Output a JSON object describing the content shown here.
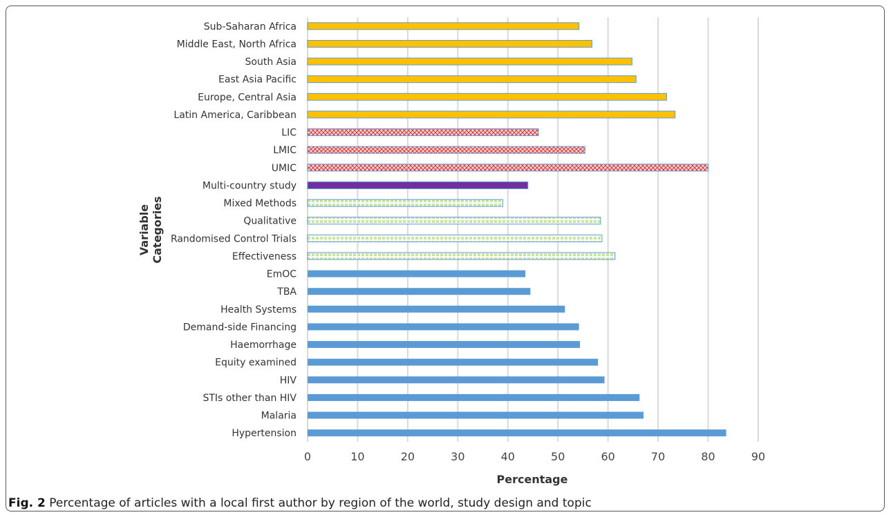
{
  "figure": {
    "label": "Fig. 2",
    "caption": "Percentage of articles with a local first author by region of the world, study design and topic"
  },
  "colors": {
    "region": "#FFC000",
    "income": "#FF9999",
    "income_cross": "#C00000",
    "multi": "#7030A0",
    "design": "#E2EFB8",
    "design_grid": "#5B9BD5",
    "topic": "#5B9BD5",
    "gridline": "#D9D9D9",
    "outline": "#5B9BD5"
  },
  "chart_data": {
    "type": "bar",
    "orientation": "horizontal",
    "xlabel": "Percentage",
    "ylabel": "Variable Categories",
    "xlim": [
      0,
      90
    ],
    "xticks": [
      0,
      10,
      20,
      30,
      40,
      50,
      60,
      70,
      80,
      90
    ],
    "grid": true,
    "categories": [
      "Sub-Saharan Africa",
      "Middle East, North Africa",
      "South Asia",
      "East Asia Pacific",
      "Europe, Central Asia",
      "Latin America, Caribbean",
      "LIC",
      "LMIC",
      "UMIC",
      "Multi-country study",
      "Mixed Methods",
      "Qualitative",
      "Randomised Control Trials",
      "Effectiveness",
      "EmOC",
      "TBA",
      "Health Systems",
      "Demand-side Financing",
      "Haemorrhage",
      "Equity examined",
      "HIV",
      "STIs other than HIV",
      "Malaria",
      "Hypertension"
    ],
    "values": [
      54.2,
      56.8,
      64.8,
      65.6,
      71.7,
      73.4,
      46.1,
      55.4,
      80.0,
      44.0,
      39.0,
      58.5,
      58.8,
      61.4,
      43.5,
      44.5,
      51.4,
      54.2,
      54.4,
      58.0,
      59.3,
      66.3,
      67.1,
      83.6
    ],
    "groups": [
      "region",
      "region",
      "region",
      "region",
      "region",
      "region",
      "income",
      "income",
      "income",
      "multi",
      "design",
      "design",
      "design",
      "design",
      "topic",
      "topic",
      "topic",
      "topic",
      "topic",
      "topic",
      "topic",
      "topic",
      "topic",
      "topic"
    ]
  }
}
